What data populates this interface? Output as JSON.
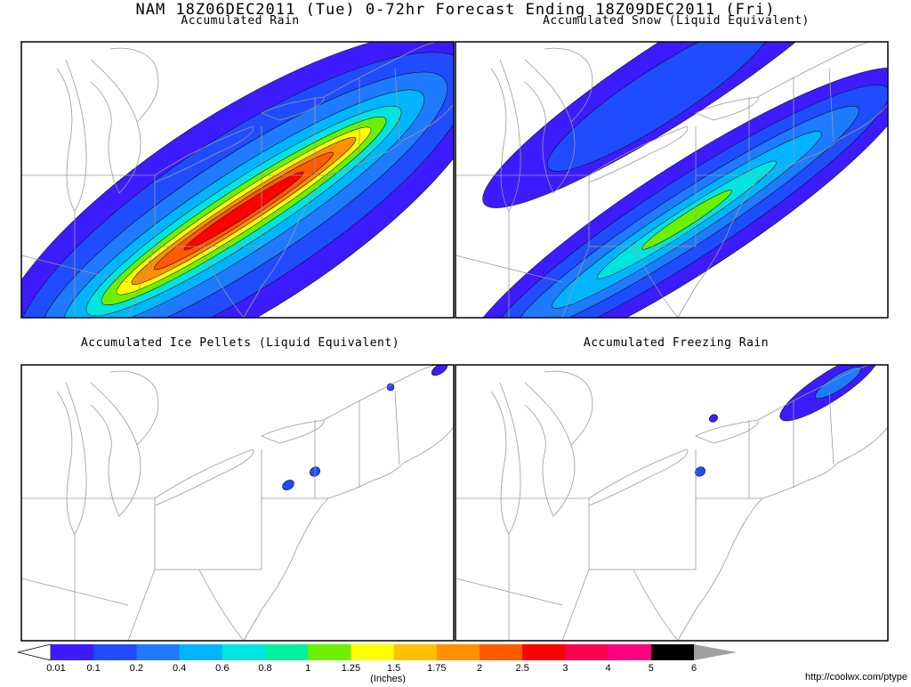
{
  "title": "NAM 18Z06DEC2011 (Tue) 0-72hr Forecast Ending 18Z09DEC2011 (Fri)",
  "panels": [
    {
      "title": "Accumulated Rain"
    },
    {
      "title": "Accumulated Snow (Liquid Equivalent)"
    },
    {
      "title": "Accumulated Ice Pellets (Liquid Equivalent)"
    },
    {
      "title": "Accumulated Freezing Rain"
    }
  ],
  "legend": {
    "labels": [
      "0.01",
      "0.1",
      "0.2",
      "0.4",
      "0.6",
      "0.8",
      "1",
      "1.25",
      "1.5",
      "1.75",
      "2",
      "2.5",
      "3",
      "4",
      "5",
      "6"
    ],
    "colors": [
      "#3c1cff",
      "#1f4cff",
      "#1e7aff",
      "#00b4ff",
      "#00e4e0",
      "#00f0a0",
      "#6cf000",
      "#ffff00",
      "#ffc000",
      "#ff9000",
      "#ff5a00",
      "#ff0000",
      "#ff0050",
      "#ff0080",
      "#000000"
    ],
    "over_color": "#a0a0a0",
    "units": "(Inches)"
  },
  "footer": "http://coolwx.com/ptype"
}
